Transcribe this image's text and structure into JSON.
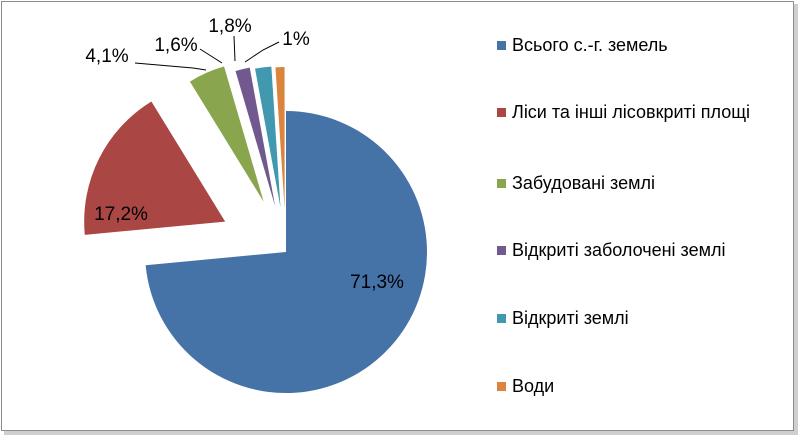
{
  "chart_data": {
    "type": "pie",
    "exploded": true,
    "legend_position": "right",
    "slices": [
      {
        "name": "Всього с.-г. земель",
        "value": 71.3,
        "label": "71,3%",
        "color": "#4572A7"
      },
      {
        "name": "Ліси та інші лісовкриті площі",
        "value": 17.2,
        "label": "17,2%",
        "color": "#AA4643"
      },
      {
        "name": "Забудовані землі",
        "value": 4.1,
        "label": "4,1%",
        "color": "#89A54E"
      },
      {
        "name": "Відкриті заболочені землі",
        "value": 1.6,
        "label": "1,6%",
        "color": "#71588F"
      },
      {
        "name": "Відкриті землі",
        "value": 1.8,
        "label": "1,8%",
        "color": "#4198AF"
      },
      {
        "name": "Води",
        "value": 1.0,
        "label": "1%",
        "color": "#DB843D"
      }
    ]
  }
}
